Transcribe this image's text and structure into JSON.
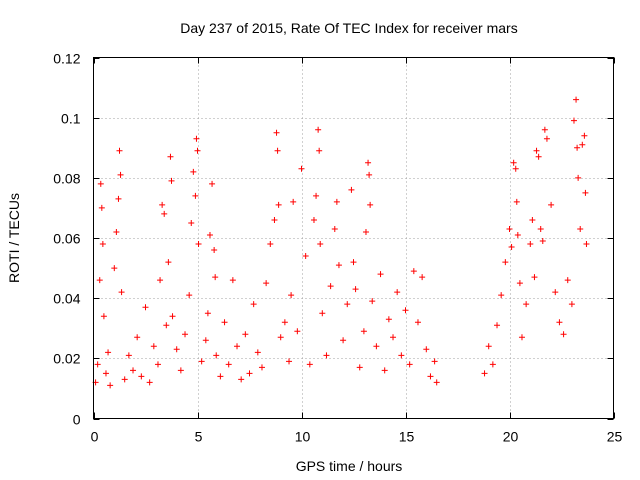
{
  "chart_data": {
    "type": "scatter",
    "title": "Day 237 of 2015, Rate Of TEC Index for receiver mars",
    "xlabel": "GPS time / hours",
    "ylabel": "ROTI / TECUs",
    "xlim": [
      0,
      25
    ],
    "ylim": [
      0,
      0.12
    ],
    "x_ticks": [
      0,
      5,
      10,
      15,
      20,
      25
    ],
    "y_ticks": [
      0,
      0.02,
      0.04,
      0.06,
      0.08,
      0.1,
      0.12
    ],
    "x_tick_labels": [
      "0",
      "5",
      "10",
      "15",
      "20",
      "25"
    ],
    "y_tick_labels": [
      "0",
      "0.02",
      "0.04",
      "0.06",
      "0.08",
      "0.1",
      "0.12"
    ],
    "grid": true,
    "marker": "plus",
    "color": "#ff0000",
    "data_gap_hours": [
      16.6,
      18.7
    ],
    "series": [
      {
        "x": [
          0.1,
          0.2,
          0.3,
          0.35,
          0.4,
          0.45,
          0.5,
          0.6,
          0.7,
          0.8,
          1.0,
          1.1,
          1.2,
          1.25,
          1.3,
          1.35,
          1.5,
          1.7,
          1.9,
          2.1,
          2.3,
          2.5,
          2.7,
          2.9,
          3.1,
          3.2,
          3.3,
          3.4,
          3.5,
          3.6,
          3.7,
          3.75,
          3.8,
          4.0,
          4.2,
          4.4,
          4.6,
          4.7,
          4.8,
          4.9,
          4.95,
          5.0,
          5.05,
          5.2,
          5.4,
          5.5,
          5.6,
          5.7,
          5.8,
          5.85,
          5.9,
          6.1,
          6.3,
          6.5,
          6.7,
          6.9,
          7.1,
          7.3,
          7.5,
          7.7,
          7.9,
          8.1,
          8.3,
          8.5,
          8.7,
          8.8,
          8.85,
          8.9,
          9.0,
          9.2,
          9.4,
          9.5,
          9.6,
          9.8,
          10.0,
          10.2,
          10.4,
          10.6,
          10.7,
          10.8,
          10.85,
          10.9,
          11.0,
          11.2,
          11.4,
          11.6,
          11.7,
          11.8,
          12.0,
          12.2,
          12.4,
          12.5,
          12.6,
          12.8,
          13.0,
          13.1,
          13.2,
          13.25,
          13.3,
          13.4,
          13.6,
          13.8,
          14.0,
          14.2,
          14.4,
          14.6,
          14.8,
          15.0,
          15.2,
          15.4,
          15.6,
          15.8,
          16.0,
          16.2,
          16.4,
          16.5,
          18.8,
          19.0,
          19.2,
          19.4,
          19.6,
          19.8,
          20.0,
          20.1,
          20.2,
          20.3,
          20.35,
          20.4,
          20.5,
          20.6,
          20.8,
          21.0,
          21.1,
          21.2,
          21.3,
          21.4,
          21.5,
          21.6,
          21.7,
          21.8,
          22.0,
          22.2,
          22.4,
          22.6,
          22.8,
          23.0,
          23.1,
          23.2,
          23.25,
          23.3,
          23.4,
          23.5,
          23.6,
          23.65,
          23.7
        ],
        "y": [
          0.012,
          0.018,
          0.046,
          0.078,
          0.07,
          0.058,
          0.034,
          0.015,
          0.022,
          0.011,
          0.05,
          0.062,
          0.073,
          0.089,
          0.081,
          0.042,
          0.013,
          0.021,
          0.016,
          0.027,
          0.014,
          0.037,
          0.012,
          0.024,
          0.018,
          0.046,
          0.071,
          0.068,
          0.031,
          0.052,
          0.087,
          0.079,
          0.034,
          0.023,
          0.016,
          0.028,
          0.041,
          0.065,
          0.082,
          0.074,
          0.093,
          0.089,
          0.058,
          0.019,
          0.026,
          0.035,
          0.061,
          0.078,
          0.056,
          0.047,
          0.021,
          0.014,
          0.032,
          0.018,
          0.046,
          0.024,
          0.013,
          0.028,
          0.015,
          0.038,
          0.022,
          0.017,
          0.045,
          0.058,
          0.066,
          0.095,
          0.089,
          0.071,
          0.027,
          0.032,
          0.019,
          0.041,
          0.072,
          0.029,
          0.083,
          0.054,
          0.018,
          0.066,
          0.074,
          0.096,
          0.089,
          0.058,
          0.035,
          0.021,
          0.044,
          0.063,
          0.072,
          0.051,
          0.026,
          0.038,
          0.076,
          0.052,
          0.043,
          0.017,
          0.029,
          0.062,
          0.085,
          0.081,
          0.071,
          0.039,
          0.024,
          0.048,
          0.016,
          0.033,
          0.027,
          0.042,
          0.021,
          0.036,
          0.018,
          0.049,
          0.032,
          0.047,
          0.023,
          0.014,
          0.019,
          0.012,
          0.015,
          0.024,
          0.018,
          0.031,
          0.041,
          0.052,
          0.063,
          0.057,
          0.085,
          0.083,
          0.072,
          0.061,
          0.045,
          0.027,
          0.038,
          0.058,
          0.066,
          0.047,
          0.089,
          0.087,
          0.063,
          0.059,
          0.096,
          0.093,
          0.071,
          0.042,
          0.032,
          0.028,
          0.046,
          0.038,
          0.099,
          0.106,
          0.09,
          0.08,
          0.063,
          0.091,
          0.094,
          0.075,
          0.058
        ]
      }
    ]
  }
}
